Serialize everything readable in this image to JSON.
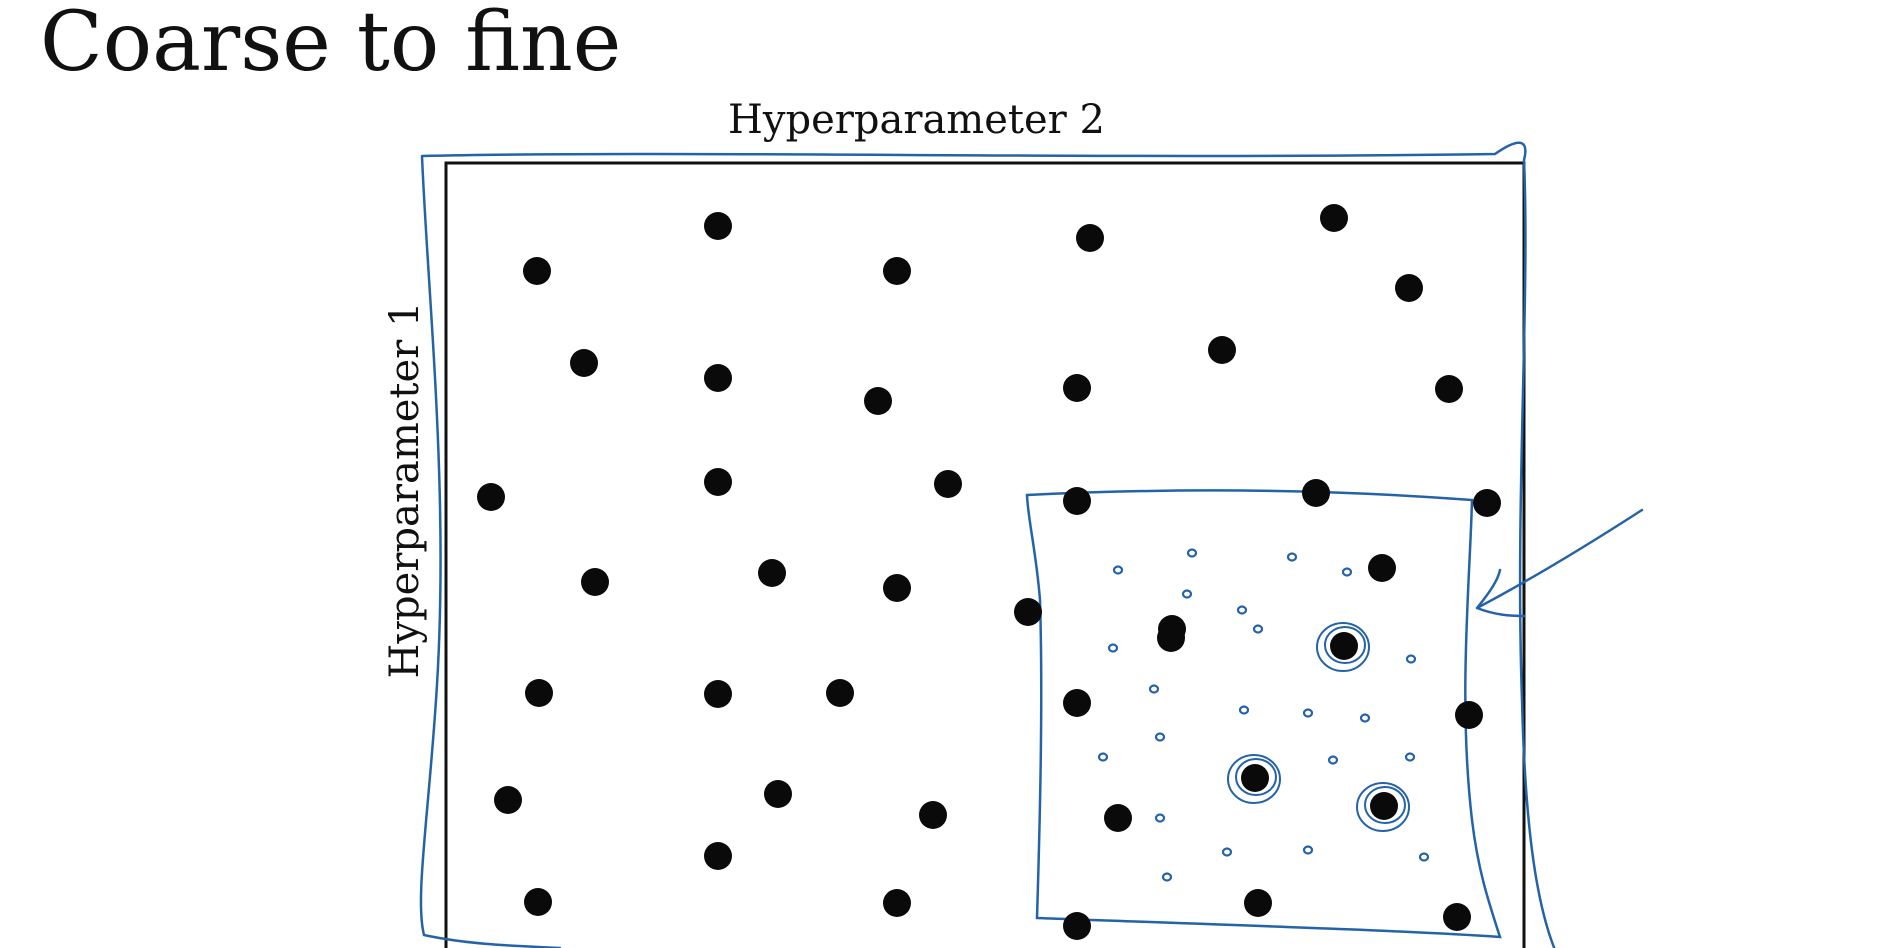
{
  "title": "Coarse to fine",
  "axes": {
    "x_label": "Hyperparameter 2",
    "y_label": "Hyperparameter 1"
  },
  "colors": {
    "points": "#0a0a0a",
    "frame": "#111111",
    "annotation": "#2563a8"
  }
}
